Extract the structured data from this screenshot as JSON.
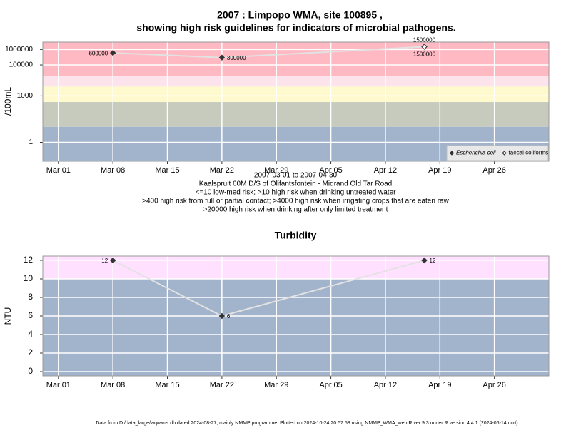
{
  "chart_data": [
    {
      "type": "line",
      "title": "2007 : Limpopo WMA, site 100895 ,",
      "subtitle": "showing high risk guidelines for indicators of microbial pathogens.",
      "ylabel": "/100mL",
      "xlabel": "2007-03-01 to 2007-04-30",
      "notes": [
        "Kaalspruit 60M D/S of Olifantsfontein - Midrand Old Tar Road",
        "<=10 low-med risk; >10 high risk when drinking untreated water",
        ">400 high risk from full or partial contact; >4000 high risk when irrigating crops that are eaten raw",
        ">20000 high risk when drinking after only limited treatment"
      ],
      "yscale": "log",
      "ylim": [
        0.06,
        3000000
      ],
      "yticks": [
        1,
        1000,
        100000,
        1000000
      ],
      "xlim": [
        "2007-02-27",
        "2007-05-03"
      ],
      "xticks": [
        {
          "value": "2007-03-01",
          "label": "Mar 01"
        },
        {
          "value": "2007-03-08",
          "label": "Mar 08"
        },
        {
          "value": "2007-03-15",
          "label": "Mar 15"
        },
        {
          "value": "2007-03-22",
          "label": "Mar 22"
        },
        {
          "value": "2007-03-29",
          "label": "Mar 29"
        },
        {
          "value": "2007-04-05",
          "label": "Apr 05"
        },
        {
          "value": "2007-04-12",
          "label": "Apr 12"
        },
        {
          "value": "2007-04-19",
          "label": "Apr 19"
        },
        {
          "value": "2007-04-26",
          "label": "Apr 26"
        }
      ],
      "grid": true,
      "legend": "bottom-right",
      "bands": [
        {
          "from": 20000,
          "to": 3000000,
          "color": "#ffb9c3"
        },
        {
          "from": 4000,
          "to": 20000,
          "color": "#fde3ec"
        },
        {
          "from": 400,
          "to": 4000,
          "color": "#fffacd"
        },
        {
          "from": 10,
          "to": 400,
          "color": "#c6cbbd"
        },
        {
          "from": 0.06,
          "to": 10,
          "color": "#a2b3cc"
        }
      ],
      "x": [
        "2007-03-08",
        "2007-03-22",
        "2007-04-17"
      ],
      "series": [
        {
          "name": "Escherichia coli",
          "color": "#333333",
          "marker": "filled",
          "values": [
            600000,
            300000,
            1500000
          ]
        },
        {
          "name": "faecal coliforms",
          "color": "#333333",
          "marker": "open",
          "values": [
            null,
            null,
            1500000
          ]
        }
      ]
    },
    {
      "type": "line",
      "title": "Turbidity",
      "ylabel": "NTU",
      "ylim": [
        -0.46,
        12.46
      ],
      "yticks": [
        0,
        2,
        4,
        6,
        8,
        10,
        12
      ],
      "xlim": [
        "2007-02-27",
        "2007-05-03"
      ],
      "xticks": [
        {
          "value": "2007-03-01",
          "label": "Mar 01"
        },
        {
          "value": "2007-03-08",
          "label": "Mar 08"
        },
        {
          "value": "2007-03-15",
          "label": "Mar 15"
        },
        {
          "value": "2007-03-22",
          "label": "Mar 22"
        },
        {
          "value": "2007-03-29",
          "label": "Mar 29"
        },
        {
          "value": "2007-04-05",
          "label": "Apr 05"
        },
        {
          "value": "2007-04-12",
          "label": "Apr 12"
        },
        {
          "value": "2007-04-19",
          "label": "Apr 19"
        },
        {
          "value": "2007-04-26",
          "label": "Apr 26"
        }
      ],
      "grid": true,
      "bands": [
        {
          "from": 10,
          "to": 12.46,
          "color": "#ffe0ff"
        },
        {
          "from": -0.46,
          "to": 10,
          "color": "#a2b3cc"
        }
      ],
      "x": [
        "2007-03-08",
        "2007-03-22",
        "2007-04-17"
      ],
      "color": "#333333",
      "marker": "filled",
      "values": [
        12,
        6,
        12
      ]
    }
  ],
  "footer": "Data from D:/data_large/wq/wms.db dated 2024-08-27, mainly NMMP programme. Plotted on 2024-10-24 20:57:58 using NMMP_WMA_web.R ver 9.3 under R version 4.4.1 (2024-06-14 ucrt)"
}
